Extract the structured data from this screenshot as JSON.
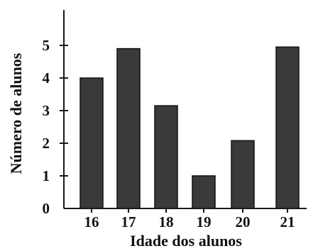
{
  "chart_data": {
    "type": "bar",
    "categories": [
      "16",
      "17",
      "18",
      "19",
      "20",
      "21"
    ],
    "values": [
      4,
      4.9,
      3.15,
      1,
      2.08,
      4.95
    ],
    "xlabel": "Idade dos alunos",
    "ylabel": "Número de alunos",
    "yticks": [
      "0",
      "1",
      "2",
      "3",
      "4",
      "5"
    ],
    "ylim": [
      0,
      6
    ],
    "grid": false,
    "bar_color": "#3a3a3a",
    "axis_color": "#1a1a1a"
  }
}
